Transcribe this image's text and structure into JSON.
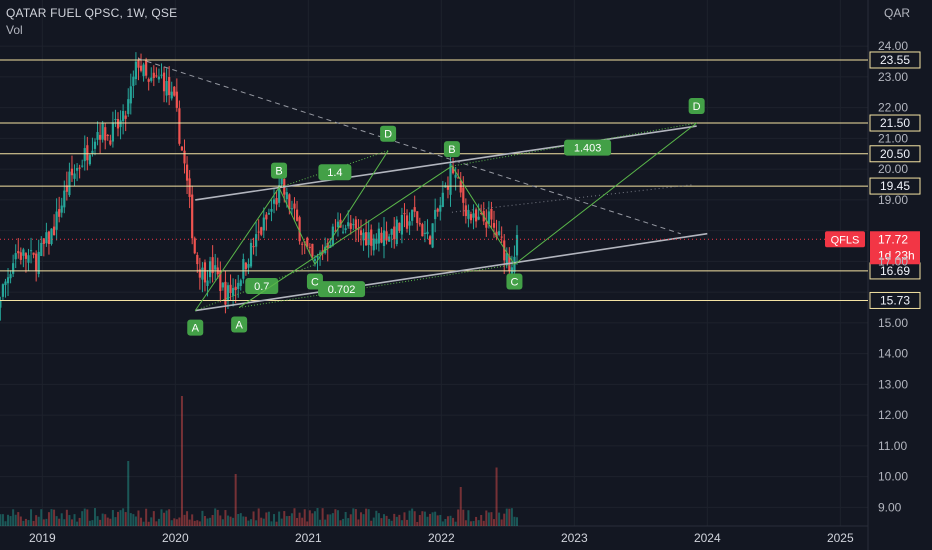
{
  "header": {
    "title": "QATAR FUEL QPSC, 1W, QSE",
    "volume_label": "Vol",
    "currency": "QAR"
  },
  "colors": {
    "background": "#131722",
    "up": "#26a69a",
    "down": "#ef5350",
    "hline": "#f4e3a3",
    "trend": "#b2b5be",
    "pattern": "#5ab74a",
    "pattern_label_bg": "#43a047",
    "price_tag": "#f23645"
  },
  "chart_data": {
    "type": "candlestick",
    "title": "QATAR FUEL QPSC, 1W, QSE",
    "ylabel": "QAR",
    "ylim": [
      8.7,
      24.6
    ],
    "y_ticks": [
      "9.00",
      "10.00",
      "11.00",
      "12.00",
      "13.00",
      "14.00",
      "15.00",
      "16.00",
      "17.00",
      "18.00",
      "19.00",
      "20.00",
      "21.00",
      "22.00",
      "23.00",
      "24.00"
    ],
    "x_ticks": [
      "2019",
      "2020",
      "2021",
      "2022",
      "2023",
      "2024",
      "2025"
    ],
    "price_path": [
      {
        "t": 2018.55,
        "v": 14.1
      },
      {
        "t": 2018.68,
        "v": 15.8
      },
      {
        "t": 2018.8,
        "v": 17.3
      },
      {
        "t": 2018.95,
        "v": 17.0
      },
      {
        "t": 2019.08,
        "v": 18.0
      },
      {
        "t": 2019.2,
        "v": 19.6
      },
      {
        "t": 2019.3,
        "v": 20.3
      },
      {
        "t": 2019.42,
        "v": 21.3
      },
      {
        "t": 2019.5,
        "v": 21.1
      },
      {
        "t": 2019.62,
        "v": 21.6
      },
      {
        "t": 2019.72,
        "v": 23.55
      },
      {
        "t": 2019.8,
        "v": 22.7
      },
      {
        "t": 2019.9,
        "v": 23.0
      },
      {
        "t": 2020.0,
        "v": 22.0
      },
      {
        "t": 2020.08,
        "v": 19.8
      },
      {
        "t": 2020.15,
        "v": 17.2
      },
      {
        "t": 2020.2,
        "v": 16.6
      },
      {
        "t": 2020.28,
        "v": 16.8
      },
      {
        "t": 2020.38,
        "v": 15.9
      },
      {
        "t": 2020.45,
        "v": 16.2
      },
      {
        "t": 2020.55,
        "v": 17.2
      },
      {
        "t": 2020.68,
        "v": 18.3
      },
      {
        "t": 2020.8,
        "v": 19.4
      },
      {
        "t": 2020.9,
        "v": 18.4
      },
      {
        "t": 2021.0,
        "v": 17.2
      },
      {
        "t": 2021.05,
        "v": 16.9
      },
      {
        "t": 2021.15,
        "v": 17.7
      },
      {
        "t": 2021.25,
        "v": 18.3
      },
      {
        "t": 2021.35,
        "v": 17.9
      },
      {
        "t": 2021.5,
        "v": 17.8
      },
      {
        "t": 2021.65,
        "v": 18.0
      },
      {
        "t": 2021.8,
        "v": 18.5
      },
      {
        "t": 2021.9,
        "v": 17.7
      },
      {
        "t": 2022.0,
        "v": 18.9
      },
      {
        "t": 2022.08,
        "v": 20.1
      },
      {
        "t": 2022.15,
        "v": 19.1
      },
      {
        "t": 2022.25,
        "v": 18.2
      },
      {
        "t": 2022.35,
        "v": 18.4
      },
      {
        "t": 2022.45,
        "v": 17.6
      },
      {
        "t": 2022.52,
        "v": 16.9
      },
      {
        "t": 2022.58,
        "v": 17.72
      }
    ],
    "volume": {
      "note": "volume histogram with spikes",
      "spikes": [
        {
          "t": 2019.65,
          "v": 0.5
        },
        {
          "t": 2020.05,
          "v": 1.0
        },
        {
          "t": 2020.45,
          "v": 0.4
        },
        {
          "t": 2022.15,
          "v": 0.3
        },
        {
          "t": 2022.42,
          "v": 0.45
        }
      ]
    },
    "horizontal_levels": [
      {
        "label": "23.55",
        "value": 23.55
      },
      {
        "label": "21.50",
        "value": 21.5
      },
      {
        "label": "20.50",
        "value": 20.5
      },
      {
        "label": "19.45",
        "value": 19.45
      },
      {
        "label": "16.69",
        "value": 16.69
      },
      {
        "label": "15.73",
        "value": 15.73
      }
    ],
    "trendlines": [
      {
        "from": {
          "t": 2020.15,
          "v": 19.0
        },
        "to": {
          "t": 2023.92,
          "v": 21.4
        }
      },
      {
        "from": {
          "t": 2020.15,
          "v": 15.4
        },
        "to": {
          "t": 2024.0,
          "v": 17.9
        }
      }
    ],
    "dashed_line": {
      "from": {
        "t": 2019.72,
        "v": 23.6
      },
      "to": {
        "t": 2023.8,
        "v": 17.9
      }
    },
    "dotted_line": {
      "from": {
        "t": 2022.08,
        "v": 18.6
      },
      "to": {
        "t": 2023.9,
        "v": 19.5
      }
    },
    "abcd_patterns": [
      {
        "points": [
          {
            "label": "A",
            "t": 2020.15,
            "v": 15.4
          },
          {
            "label": "B",
            "t": 2020.78,
            "v": 19.4
          },
          {
            "label": "C",
            "t": 2021.05,
            "v": 16.9
          },
          {
            "label": "D",
            "t": 2021.6,
            "v": 20.6
          }
        ],
        "ratios": [
          {
            "label": "0.7",
            "t": 2020.65,
            "v": 16.2
          },
          {
            "label": "1.4",
            "t": 2021.2,
            "v": 19.9
          }
        ],
        "label_pos": {
          "A": "below",
          "B": "above",
          "C": "below",
          "D": "above"
        }
      },
      {
        "points": [
          {
            "label": "A",
            "t": 2020.48,
            "v": 15.5
          },
          {
            "label": "B",
            "t": 2022.08,
            "v": 20.1
          },
          {
            "label": "C",
            "t": 2022.55,
            "v": 16.9
          },
          {
            "label": "D",
            "t": 2023.92,
            "v": 21.5
          }
        ],
        "ratios": [
          {
            "label": "0.702",
            "t": 2021.25,
            "v": 16.1
          },
          {
            "label": "1.403",
            "t": 2023.1,
            "v": 20.7
          }
        ],
        "label_pos": {
          "A": "below",
          "B": "above",
          "C": "below",
          "D": "above"
        }
      }
    ],
    "current_price": {
      "symbol": "QFLS",
      "price": "17.72",
      "countdown": "1d 23h",
      "value": 17.72
    }
  }
}
